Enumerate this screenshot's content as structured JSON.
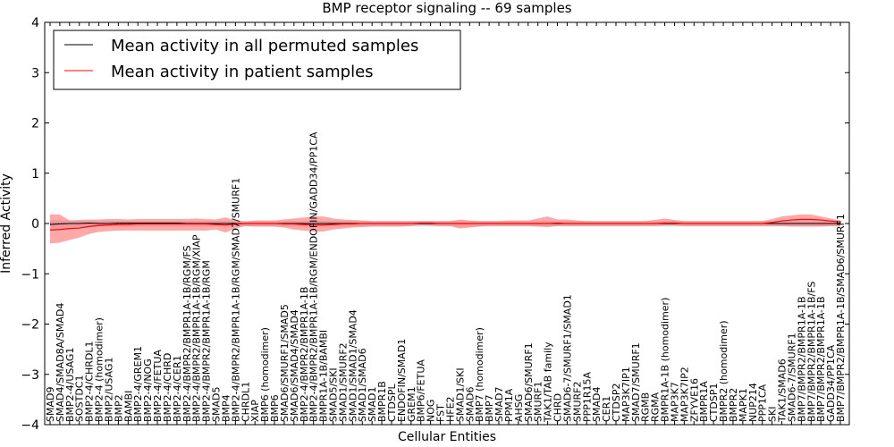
{
  "chart_data": {
    "type": "line",
    "title": "BMP receptor signaling -- 69 samples",
    "xlabel": "Cellular Entities",
    "ylabel": "Inferred Activity",
    "ylim": [
      -4,
      4
    ],
    "yticks": [
      "-4",
      "-3",
      "-2",
      "-1",
      "0",
      "1",
      "2",
      "3",
      "4"
    ],
    "grid": false,
    "legend_position": "top-left",
    "categories": [
      "SMAD9",
      "SMAD4/SMAD8A/SMAD4",
      "BMP2-4/USAG1",
      "SOSTDC1",
      "BMP2-4/CHRDL1",
      "BMP2-4 (homodimer)",
      "BMP2/USAG1",
      "BMP2",
      "BAMBI",
      "BMP2-4/GREM1",
      "BMP2-4/NOG",
      "BMP2-4/FETUA",
      "BMP2-4/CHRD",
      "BMP2-4/CER1",
      "BMP2-4/BMPR2/BMPR1A-1B/RGM/FS",
      "BMP2-4/BMPR2/BMPR1A-1B/RGM/XIAP",
      "BMP2-4/BMPR2/BMPR1A-1B/RGM",
      "SMAD5",
      "BMP4",
      "BMP2-4/BMPR2/BMPR1A-1B/RGM/SMAD7/SMURF1",
      "CHRDL1",
      "XIAP",
      "BMP6 (homodimer)",
      "BMP6",
      "SMAD6/SMURF1/SMAD5",
      "SMAD6/SMAD4/SMAD4",
      "BMP2-4/BMPR2/BMPR1A-1B",
      "BMP2-4/BMPR2/BMPR1A-1B/RGM/ENDOFIN/GADD34/PP1CA",
      "BMPR1A-1B/BAMBI",
      "SMAD5/SKI",
      "SMAD1/SMURF2",
      "SMAD1/SMAD1/SMAD4",
      "SMAD1/SMAD6",
      "SMAD1",
      "BMPR1B",
      "CTDSPL",
      "ENDOFIN/SMAD1",
      "GREM1",
      "BMP6/FETUA",
      "NOG",
      "FST",
      "HFE2",
      "SMAD1/SKI",
      "SMAD6",
      "BMP7 (homodimer)",
      "BMP7",
      "SMAD7",
      "PPM1A",
      "AHSG",
      "SMAD6/SMURF1",
      "SMURF1",
      "TAK1/TAB family",
      "CHRD",
      "SMAD6-7/SMURF1/SMAD1",
      "SMURF2",
      "PPP1R15A",
      "SMAD4",
      "CER1",
      "CTDSP2",
      "MAP3K7IP1",
      "SMAD7/SMURF1",
      "RGMB",
      "RGMA",
      "BMPR1A-1B (homodimer)",
      "MAP3K7",
      "MAP3K7IP2",
      "ZFYVE16",
      "BMPR1A",
      "CTDSP1",
      "BMPR2 (homodimer)",
      "BMPR2",
      "MAPK1",
      "NUP214",
      "PPP1CA",
      "SKI",
      "TAK1/SMAD6",
      "SMAD6-7/SMURF1",
      "BMP7/BMPR2/BMPR1A-1B",
      "BMP7/BMPR2/BMPR1A-1B/FS",
      "BMP7/BMPR2/BMPR1A-1B",
      "GADD34/PP1CA",
      "BMP7/BMPR2/BMPR1A-1B/SMAD6/SMURF1"
    ],
    "series": [
      {
        "name": "Mean activity in all permuted samples",
        "color": "#000000",
        "values": [
          -0.02,
          -0.01,
          0.0,
          0.0,
          0.01,
          0.0,
          0.0,
          0.01,
          0.01,
          0.01,
          0.01,
          0.01,
          0.01,
          0.01,
          0.0,
          0.0,
          0.0,
          0.0,
          0.0,
          0.0,
          0.0,
          0.0,
          0.0,
          0.0,
          0.0,
          0.0,
          0.0,
          0.0,
          0.0,
          0.0,
          0.0,
          0.0,
          0.0,
          0.0,
          0.0,
          0.0,
          0.0,
          0.0,
          0.0,
          0.0,
          0.0,
          0.0,
          0.0,
          0.0,
          0.0,
          0.0,
          0.0,
          0.0,
          0.0,
          0.0,
          0.0,
          0.0,
          0.0,
          0.0,
          0.0,
          0.0,
          0.0,
          0.0,
          0.0,
          0.0,
          0.0,
          0.0,
          0.0,
          0.0,
          0.0,
          0.0,
          0.0,
          0.0,
          0.0,
          0.0,
          0.0,
          0.0,
          0.0,
          0.0,
          0.0,
          0.0,
          0.0,
          0.0,
          0.0,
          0.0,
          0.0,
          0.0
        ],
        "band_lower": [
          -0.12,
          -0.1,
          -0.08,
          -0.07,
          -0.06,
          -0.06,
          -0.06,
          -0.06,
          -0.06,
          -0.06,
          -0.06,
          -0.06,
          -0.06,
          -0.06,
          -0.06,
          -0.06,
          -0.06,
          -0.06,
          -0.06,
          -0.06,
          -0.06,
          -0.06,
          -0.06,
          -0.06,
          -0.06,
          -0.06,
          -0.06,
          -0.06,
          -0.06,
          -0.06,
          -0.06,
          -0.06,
          -0.06,
          -0.06,
          -0.06,
          -0.06,
          -0.06,
          -0.06,
          -0.06,
          -0.06,
          -0.06,
          -0.06,
          -0.06,
          -0.06,
          -0.06,
          -0.06,
          -0.06,
          -0.06,
          -0.06,
          -0.06,
          -0.06,
          -0.06,
          -0.06,
          -0.06,
          -0.06,
          -0.06,
          -0.06,
          -0.06,
          -0.06,
          -0.06,
          -0.06,
          -0.06,
          -0.06,
          -0.06,
          -0.06,
          -0.06,
          -0.06,
          -0.06,
          -0.06,
          -0.06,
          -0.06,
          -0.06,
          -0.06,
          -0.06,
          -0.06,
          -0.06,
          -0.06,
          -0.06,
          -0.06,
          -0.06,
          -0.06,
          -0.06
        ],
        "band_upper": [
          0.07,
          0.06,
          0.06,
          0.05,
          0.05,
          0.05,
          0.05,
          0.05,
          0.05,
          0.05,
          0.05,
          0.05,
          0.05,
          0.05,
          0.05,
          0.05,
          0.05,
          0.05,
          0.05,
          0.05,
          0.05,
          0.05,
          0.05,
          0.05,
          0.05,
          0.05,
          0.05,
          0.05,
          0.05,
          0.05,
          0.05,
          0.05,
          0.05,
          0.05,
          0.05,
          0.05,
          0.05,
          0.05,
          0.05,
          0.05,
          0.05,
          0.05,
          0.05,
          0.05,
          0.05,
          0.05,
          0.05,
          0.05,
          0.05,
          0.05,
          0.05,
          0.05,
          0.05,
          0.05,
          0.05,
          0.05,
          0.05,
          0.05,
          0.05,
          0.05,
          0.05,
          0.05,
          0.05,
          0.05,
          0.05,
          0.05,
          0.05,
          0.05,
          0.05,
          0.05,
          0.05,
          0.05,
          0.05,
          0.05,
          0.05,
          0.05,
          0.05,
          0.05,
          0.05,
          0.05,
          0.05,
          0.05
        ]
      },
      {
        "name": "Mean activity in patient samples",
        "color": "#ff0000",
        "values": [
          -0.13,
          -0.12,
          -0.1,
          -0.09,
          -0.06,
          -0.04,
          -0.03,
          -0.02,
          -0.02,
          -0.01,
          -0.01,
          -0.01,
          -0.01,
          -0.01,
          -0.01,
          -0.01,
          -0.01,
          -0.02,
          -0.03,
          -0.01,
          0.0,
          0.0,
          0.0,
          0.0,
          -0.01,
          -0.01,
          -0.02,
          -0.03,
          -0.03,
          -0.02,
          -0.01,
          -0.01,
          0.0,
          0.0,
          0.0,
          0.0,
          0.0,
          0.0,
          0.01,
          0.01,
          0.0,
          0.0,
          0.0,
          0.0,
          0.0,
          0.0,
          0.0,
          0.0,
          0.0,
          0.0,
          0.0,
          0.0,
          0.01,
          0.0,
          0.0,
          0.0,
          0.0,
          0.0,
          0.0,
          0.0,
          0.0,
          0.0,
          0.0,
          0.01,
          0.01,
          0.0,
          0.0,
          0.0,
          0.0,
          0.0,
          0.0,
          0.0,
          0.0,
          0.0,
          0.02,
          0.05,
          0.07,
          0.08,
          0.08,
          0.07,
          0.05,
          0.03
        ],
        "band_lower": [
          -0.4,
          -0.38,
          -0.33,
          -0.28,
          -0.21,
          -0.17,
          -0.15,
          -0.14,
          -0.14,
          -0.14,
          -0.14,
          -0.14,
          -0.14,
          -0.14,
          -0.14,
          -0.14,
          -0.14,
          -0.12,
          -0.18,
          -0.1,
          -0.05,
          -0.06,
          -0.06,
          -0.06,
          -0.08,
          -0.12,
          -0.14,
          -0.16,
          -0.16,
          -0.12,
          -0.1,
          -0.08,
          -0.07,
          -0.06,
          -0.06,
          -0.06,
          -0.06,
          -0.05,
          -0.03,
          -0.04,
          -0.05,
          -0.05,
          -0.1,
          -0.08,
          -0.06,
          -0.05,
          -0.05,
          -0.05,
          -0.05,
          -0.05,
          -0.06,
          -0.07,
          -0.05,
          -0.05,
          -0.05,
          -0.05,
          -0.05,
          -0.05,
          -0.05,
          -0.05,
          -0.05,
          -0.05,
          -0.05,
          -0.04,
          -0.04,
          -0.05,
          -0.05,
          -0.05,
          -0.05,
          -0.05,
          -0.05,
          -0.05,
          -0.05,
          -0.05,
          -0.05,
          -0.05,
          -0.06,
          -0.06,
          -0.06,
          -0.06,
          -0.05,
          -0.05
        ],
        "band_upper": [
          0.18,
          0.18,
          0.06,
          0.07,
          0.08,
          0.08,
          0.09,
          0.09,
          0.08,
          0.09,
          0.09,
          0.09,
          0.09,
          0.09,
          0.09,
          0.1,
          0.09,
          0.08,
          0.12,
          0.06,
          0.04,
          0.06,
          0.06,
          0.06,
          0.08,
          0.1,
          0.12,
          0.14,
          0.14,
          0.1,
          0.08,
          0.07,
          0.06,
          0.05,
          0.05,
          0.05,
          0.05,
          0.05,
          0.05,
          0.05,
          0.05,
          0.05,
          0.08,
          0.06,
          0.05,
          0.05,
          0.05,
          0.06,
          0.06,
          0.06,
          0.1,
          0.14,
          0.08,
          0.08,
          0.06,
          0.05,
          0.05,
          0.05,
          0.05,
          0.05,
          0.05,
          0.05,
          0.07,
          0.1,
          0.07,
          0.05,
          0.05,
          0.05,
          0.05,
          0.05,
          0.05,
          0.05,
          0.05,
          0.05,
          0.09,
          0.14,
          0.16,
          0.18,
          0.18,
          0.14,
          0.1,
          0.06
        ]
      }
    ]
  }
}
